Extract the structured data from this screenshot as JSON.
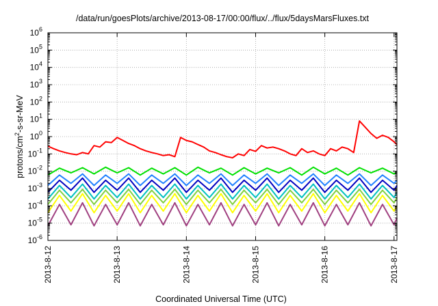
{
  "chart_data": {
    "type": "line",
    "title": "/data/run/goesPlots/archive/2013-08-17/00:00/flux/../flux/5daysMarsFluxes.txt",
    "xlabel": "Coordinated Universal Time (UTC)",
    "ylabel_main": "protons/cm",
    "ylabel_sup": "2",
    "ylabel_rest": "-s-sr-MeV",
    "yscale": "log",
    "ylim": [
      1e-06,
      1000000.0
    ],
    "y_ticks": [
      {
        "value": 1e-06,
        "base": "10",
        "exp": "-6"
      },
      {
        "value": 1e-05,
        "base": "10",
        "exp": "-5"
      },
      {
        "value": 0.0001,
        "base": "10",
        "exp": "-4"
      },
      {
        "value": 0.001,
        "base": "10",
        "exp": "-3"
      },
      {
        "value": 0.01,
        "base": "10",
        "exp": "-2"
      },
      {
        "value": 0.1,
        "base": "10",
        "exp": "-1"
      },
      {
        "value": 1,
        "base": "10",
        "exp": "0"
      },
      {
        "value": 10,
        "base": "10",
        "exp": "1"
      },
      {
        "value": 100,
        "base": "10",
        "exp": "2"
      },
      {
        "value": 1000,
        "base": "10",
        "exp": "3"
      },
      {
        "value": 10000,
        "base": "10",
        "exp": "4"
      },
      {
        "value": 100000,
        "base": "10",
        "exp": "5"
      },
      {
        "value": 1000000,
        "base": "10",
        "exp": "6"
      }
    ],
    "xlim": [
      "2013-08-12 00:00",
      "2013-08-17 01:00"
    ],
    "x_ticks": [
      {
        "value": "2013-08-12",
        "label": "2013-8-12"
      },
      {
        "value": "2013-08-13",
        "label": "2013-8-13"
      },
      {
        "value": "2013-08-14",
        "label": "2013-8-14"
      },
      {
        "value": "2013-08-15",
        "label": "2013-8-15"
      },
      {
        "value": "2013-08-16",
        "label": "2013-8-16"
      },
      {
        "value": "2013-08-17",
        "label": "2013-8-17"
      }
    ],
    "grid": true,
    "series": [
      {
        "color": "#ff0000",
        "x": [
          "2013-08-12 00:00",
          "2013-08-12 02:00",
          "2013-08-12 04:00",
          "2013-08-12 06:00",
          "2013-08-12 08:00",
          "2013-08-12 10:00",
          "2013-08-12 12:00",
          "2013-08-12 14:00",
          "2013-08-12 16:00",
          "2013-08-12 18:00",
          "2013-08-12 20:00",
          "2013-08-12 22:00",
          "2013-08-13 00:00",
          "2013-08-13 02:00",
          "2013-08-13 04:00",
          "2013-08-13 06:00",
          "2013-08-13 08:00",
          "2013-08-13 10:00",
          "2013-08-13 12:00",
          "2013-08-13 14:00",
          "2013-08-13 16:00",
          "2013-08-13 18:00",
          "2013-08-13 20:00",
          "2013-08-13 22:00",
          "2013-08-14 00:00",
          "2013-08-14 02:00",
          "2013-08-14 04:00",
          "2013-08-14 06:00",
          "2013-08-14 08:00",
          "2013-08-14 10:00",
          "2013-08-14 12:00",
          "2013-08-14 14:00",
          "2013-08-14 16:00",
          "2013-08-14 18:00",
          "2013-08-14 20:00",
          "2013-08-14 22:00",
          "2013-08-15 00:00",
          "2013-08-15 02:00",
          "2013-08-15 04:00",
          "2013-08-15 06:00",
          "2013-08-15 08:00",
          "2013-08-15 10:00",
          "2013-08-15 12:00",
          "2013-08-15 14:00",
          "2013-08-15 16:00",
          "2013-08-15 18:00",
          "2013-08-15 20:00",
          "2013-08-15 22:00",
          "2013-08-16 00:00",
          "2013-08-16 02:00",
          "2013-08-16 04:00",
          "2013-08-16 06:00",
          "2013-08-16 08:00",
          "2013-08-16 10:00",
          "2013-08-16 12:00",
          "2013-08-16 14:00",
          "2013-08-16 16:00",
          "2013-08-16 18:00",
          "2013-08-16 20:00",
          "2013-08-16 22:00",
          "2013-08-17 00:00",
          "2013-08-17 01:00"
        ],
        "y": [
          0.28,
          0.2,
          0.15,
          0.12,
          0.1,
          0.09,
          0.12,
          0.1,
          0.3,
          0.25,
          0.5,
          0.45,
          0.9,
          0.6,
          0.4,
          0.3,
          0.2,
          0.15,
          0.12,
          0.1,
          0.08,
          0.09,
          0.07,
          0.9,
          0.6,
          0.5,
          0.35,
          0.25,
          0.15,
          0.12,
          0.09,
          0.07,
          0.06,
          0.1,
          0.08,
          0.18,
          0.14,
          0.3,
          0.22,
          0.25,
          0.2,
          0.15,
          0.1,
          0.08,
          0.2,
          0.12,
          0.15,
          0.1,
          0.08,
          0.2,
          0.15,
          0.25,
          0.2,
          0.12,
          8.0,
          3.5,
          1.5,
          0.8,
          1.2,
          0.9,
          0.5,
          0.35
        ]
      },
      {
        "color": "#00e000",
        "x": [
          "2013-08-12 00:00",
          "2013-08-12 04:00",
          "2013-08-12 08:00",
          "2013-08-12 12:00",
          "2013-08-12 16:00",
          "2013-08-12 20:00",
          "2013-08-13 00:00",
          "2013-08-13 04:00",
          "2013-08-13 08:00",
          "2013-08-13 12:00",
          "2013-08-13 16:00",
          "2013-08-13 20:00",
          "2013-08-14 00:00",
          "2013-08-14 04:00",
          "2013-08-14 08:00",
          "2013-08-14 12:00",
          "2013-08-14 16:00",
          "2013-08-14 20:00",
          "2013-08-15 00:00",
          "2013-08-15 04:00",
          "2013-08-15 08:00",
          "2013-08-15 12:00",
          "2013-08-15 16:00",
          "2013-08-15 20:00",
          "2013-08-16 00:00",
          "2013-08-16 04:00",
          "2013-08-16 08:00",
          "2013-08-16 12:00",
          "2013-08-16 16:00",
          "2013-08-16 20:00",
          "2013-08-17 00:00",
          "2013-08-17 01:00"
        ],
        "y": [
          0.006,
          0.015,
          0.008,
          0.016,
          0.007,
          0.017,
          0.008,
          0.016,
          0.006,
          0.015,
          0.007,
          0.016,
          0.006,
          0.017,
          0.008,
          0.015,
          0.006,
          0.016,
          0.007,
          0.015,
          0.008,
          0.016,
          0.006,
          0.017,
          0.007,
          0.015,
          0.006,
          0.016,
          0.008,
          0.015,
          0.007,
          0.009
        ]
      },
      {
        "color": "#2080ff",
        "x": [
          "2013-08-12 00:00",
          "2013-08-12 04:00",
          "2013-08-12 08:00",
          "2013-08-12 12:00",
          "2013-08-12 16:00",
          "2013-08-12 20:00",
          "2013-08-13 00:00",
          "2013-08-13 04:00",
          "2013-08-13 08:00",
          "2013-08-13 12:00",
          "2013-08-13 16:00",
          "2013-08-13 20:00",
          "2013-08-14 00:00",
          "2013-08-14 04:00",
          "2013-08-14 08:00",
          "2013-08-14 12:00",
          "2013-08-14 16:00",
          "2013-08-14 20:00",
          "2013-08-15 00:00",
          "2013-08-15 04:00",
          "2013-08-15 08:00",
          "2013-08-15 12:00",
          "2013-08-15 16:00",
          "2013-08-15 20:00",
          "2013-08-16 00:00",
          "2013-08-16 04:00",
          "2013-08-16 08:00",
          "2013-08-16 12:00",
          "2013-08-16 16:00",
          "2013-08-16 20:00",
          "2013-08-17 00:00",
          "2013-08-17 01:00"
        ],
        "y": [
          0.0015,
          0.006,
          0.002,
          0.007,
          0.0015,
          0.006,
          0.002,
          0.007,
          0.0015,
          0.006,
          0.002,
          0.007,
          0.0015,
          0.006,
          0.002,
          0.007,
          0.0015,
          0.006,
          0.002,
          0.007,
          0.0015,
          0.006,
          0.002,
          0.007,
          0.0015,
          0.006,
          0.002,
          0.007,
          0.0015,
          0.006,
          0.002,
          0.003
        ]
      },
      {
        "color": "#0000c0",
        "x": [
          "2013-08-12 00:00",
          "2013-08-12 04:00",
          "2013-08-12 08:00",
          "2013-08-12 12:00",
          "2013-08-12 16:00",
          "2013-08-12 20:00",
          "2013-08-13 00:00",
          "2013-08-13 04:00",
          "2013-08-13 08:00",
          "2013-08-13 12:00",
          "2013-08-13 16:00",
          "2013-08-13 20:00",
          "2013-08-14 00:00",
          "2013-08-14 04:00",
          "2013-08-14 08:00",
          "2013-08-14 12:00",
          "2013-08-14 16:00",
          "2013-08-14 20:00",
          "2013-08-15 00:00",
          "2013-08-15 04:00",
          "2013-08-15 08:00",
          "2013-08-15 12:00",
          "2013-08-15 16:00",
          "2013-08-15 20:00",
          "2013-08-16 00:00",
          "2013-08-16 04:00",
          "2013-08-16 08:00",
          "2013-08-16 12:00",
          "2013-08-16 16:00",
          "2013-08-16 20:00",
          "2013-08-17 00:00",
          "2013-08-17 01:00"
        ],
        "y": [
          0.0006,
          0.003,
          0.0008,
          0.004,
          0.0006,
          0.003,
          0.0008,
          0.004,
          0.0006,
          0.003,
          0.0008,
          0.004,
          0.0006,
          0.003,
          0.0008,
          0.004,
          0.0006,
          0.003,
          0.0008,
          0.004,
          0.0006,
          0.003,
          0.0008,
          0.004,
          0.0006,
          0.003,
          0.0008,
          0.004,
          0.0006,
          0.003,
          0.0008,
          0.0015
        ]
      },
      {
        "color": "#00c0c0",
        "x": [
          "2013-08-12 00:00",
          "2013-08-12 04:00",
          "2013-08-12 08:00",
          "2013-08-12 12:00",
          "2013-08-12 16:00",
          "2013-08-12 20:00",
          "2013-08-13 00:00",
          "2013-08-13 04:00",
          "2013-08-13 08:00",
          "2013-08-13 12:00",
          "2013-08-13 16:00",
          "2013-08-13 20:00",
          "2013-08-14 00:00",
          "2013-08-14 04:00",
          "2013-08-14 08:00",
          "2013-08-14 12:00",
          "2013-08-14 16:00",
          "2013-08-14 20:00",
          "2013-08-15 00:00",
          "2013-08-15 04:00",
          "2013-08-15 08:00",
          "2013-08-15 12:00",
          "2013-08-15 16:00",
          "2013-08-15 20:00",
          "2013-08-16 00:00",
          "2013-08-16 04:00",
          "2013-08-16 08:00",
          "2013-08-16 12:00",
          "2013-08-16 16:00",
          "2013-08-16 20:00",
          "2013-08-17 00:00",
          "2013-08-17 01:00"
        ],
        "y": [
          0.00025,
          0.0015,
          0.0003,
          0.0018,
          0.00025,
          0.0015,
          0.0003,
          0.0018,
          0.00025,
          0.0015,
          0.0003,
          0.0018,
          0.00025,
          0.0015,
          0.0003,
          0.0018,
          0.00025,
          0.0015,
          0.0003,
          0.0018,
          0.00025,
          0.0015,
          0.0003,
          0.0018,
          0.00025,
          0.0015,
          0.0003,
          0.0018,
          0.00025,
          0.0015,
          0.0003,
          0.0006
        ]
      },
      {
        "color": "#80d040",
        "x": [
          "2013-08-12 00:00",
          "2013-08-12 04:00",
          "2013-08-12 08:00",
          "2013-08-12 12:00",
          "2013-08-12 16:00",
          "2013-08-12 20:00",
          "2013-08-13 00:00",
          "2013-08-13 04:00",
          "2013-08-13 08:00",
          "2013-08-13 12:00",
          "2013-08-13 16:00",
          "2013-08-13 20:00",
          "2013-08-14 00:00",
          "2013-08-14 04:00",
          "2013-08-14 08:00",
          "2013-08-14 12:00",
          "2013-08-14 16:00",
          "2013-08-14 20:00",
          "2013-08-15 00:00",
          "2013-08-15 04:00",
          "2013-08-15 08:00",
          "2013-08-15 12:00",
          "2013-08-15 16:00",
          "2013-08-15 20:00",
          "2013-08-16 00:00",
          "2013-08-16 04:00",
          "2013-08-16 08:00",
          "2013-08-16 12:00",
          "2013-08-16 16:00",
          "2013-08-16 20:00",
          "2013-08-17 00:00",
          "2013-08-17 01:00"
        ],
        "y": [
          0.00012,
          0.0008,
          0.00015,
          0.0009,
          0.00012,
          0.0008,
          0.00015,
          0.0009,
          0.00012,
          0.0008,
          0.00015,
          0.0009,
          0.00012,
          0.0008,
          0.00015,
          0.0009,
          0.00012,
          0.0008,
          0.00015,
          0.0009,
          0.00012,
          0.0008,
          0.00015,
          0.0009,
          0.00012,
          0.0008,
          0.00015,
          0.0009,
          0.00012,
          0.0008,
          0.00015,
          0.0003
        ]
      },
      {
        "color": "#ffff00",
        "x": [
          "2013-08-12 00:00",
          "2013-08-12 04:00",
          "2013-08-12 08:00",
          "2013-08-12 12:00",
          "2013-08-12 16:00",
          "2013-08-12 20:00",
          "2013-08-13 00:00",
          "2013-08-13 04:00",
          "2013-08-13 08:00",
          "2013-08-13 12:00",
          "2013-08-13 16:00",
          "2013-08-13 20:00",
          "2013-08-14 00:00",
          "2013-08-14 04:00",
          "2013-08-14 08:00",
          "2013-08-14 12:00",
          "2013-08-14 16:00",
          "2013-08-14 20:00",
          "2013-08-15 00:00",
          "2013-08-15 04:00",
          "2013-08-15 08:00",
          "2013-08-15 12:00",
          "2013-08-15 16:00",
          "2013-08-15 20:00",
          "2013-08-16 00:00",
          "2013-08-16 04:00",
          "2013-08-16 08:00",
          "2013-08-16 12:00",
          "2013-08-16 16:00",
          "2013-08-16 20:00",
          "2013-08-17 00:00",
          "2013-08-17 01:00"
        ],
        "y": [
          4e-05,
          0.0004,
          5e-05,
          0.0005,
          4e-05,
          0.0004,
          5e-05,
          0.0005,
          4e-05,
          0.0004,
          5e-05,
          0.0005,
          4e-05,
          0.0004,
          5e-05,
          0.0005,
          4e-05,
          0.0004,
          5e-05,
          0.0005,
          4e-05,
          0.0004,
          5e-05,
          0.0005,
          4e-05,
          0.0004,
          5e-05,
          0.0005,
          4e-05,
          0.0004,
          5e-05,
          0.0001
        ]
      },
      {
        "color": "#a04080",
        "x": [
          "2013-08-12 00:00",
          "2013-08-12 04:00",
          "2013-08-12 08:00",
          "2013-08-12 12:00",
          "2013-08-12 16:00",
          "2013-08-12 20:00",
          "2013-08-13 00:00",
          "2013-08-13 04:00",
          "2013-08-13 08:00",
          "2013-08-13 12:00",
          "2013-08-13 16:00",
          "2013-08-13 20:00",
          "2013-08-14 00:00",
          "2013-08-14 04:00",
          "2013-08-14 08:00",
          "2013-08-14 12:00",
          "2013-08-14 16:00",
          "2013-08-14 20:00",
          "2013-08-15 00:00",
          "2013-08-15 04:00",
          "2013-08-15 08:00",
          "2013-08-15 12:00",
          "2013-08-15 16:00",
          "2013-08-15 20:00",
          "2013-08-16 00:00",
          "2013-08-16 04:00",
          "2013-08-16 08:00",
          "2013-08-16 12:00",
          "2013-08-16 16:00",
          "2013-08-16 20:00",
          "2013-08-17 00:00",
          "2013-08-17 01:00"
        ],
        "y": [
          7e-06,
          0.00012,
          8e-06,
          0.00015,
          7e-06,
          0.00012,
          8e-06,
          0.00015,
          7e-06,
          0.00012,
          8e-06,
          0.00015,
          7e-06,
          0.00012,
          8e-06,
          0.00015,
          7e-06,
          0.00012,
          8e-06,
          0.00015,
          7e-06,
          0.00012,
          8e-06,
          0.00015,
          7e-06,
          0.00012,
          8e-06,
          0.00015,
          7e-06,
          0.00012,
          8e-06,
          2e-05
        ]
      }
    ]
  }
}
